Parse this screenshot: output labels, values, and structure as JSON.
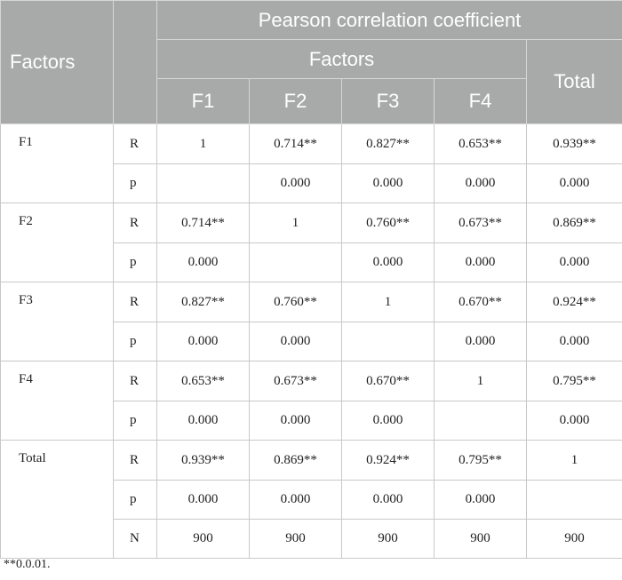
{
  "header": {
    "factors_col": "Factors",
    "pearson": "Pearson correlation coefficient",
    "factors_group": "Factors",
    "total": "Total",
    "sub": [
      "F1",
      "F2",
      "F3",
      "F4"
    ]
  },
  "rows": [
    {
      "factor": "F1",
      "R": [
        "1",
        "0.714**",
        "0.827**",
        "0.653**",
        "0.939**"
      ],
      "p": [
        "",
        "0.000",
        "0.000",
        "0.000",
        "0.000"
      ]
    },
    {
      "factor": "F2",
      "R": [
        "0.714**",
        "1",
        "0.760**",
        "0.673**",
        "0.869**"
      ],
      "p": [
        "0.000",
        "",
        "0.000",
        "0.000",
        "0.000"
      ]
    },
    {
      "factor": "F3",
      "R": [
        "0.827**",
        "0.760**",
        "1",
        "0.670**",
        "0.924**"
      ],
      "p": [
        "0.000",
        "0.000",
        "",
        "0.000",
        "0.000"
      ]
    },
    {
      "factor": "F4",
      "R": [
        "0.653**",
        "0.673**",
        "0.670**",
        "1",
        "0.795**"
      ],
      "p": [
        "0.000",
        "0.000",
        "0.000",
        "",
        "0.000"
      ]
    },
    {
      "factor": "Total",
      "R": [
        "0.939**",
        "0.869**",
        "0.924**",
        "0.795**",
        "1"
      ],
      "p": [
        "0.000",
        "0.000",
        "0.000",
        "0.000",
        ""
      ],
      "N": [
        "900",
        "900",
        "900",
        "900",
        "900"
      ]
    }
  ],
  "stat_labels": {
    "R": "R",
    "p": "p",
    "N": "N"
  },
  "note": "**0.0.01."
}
